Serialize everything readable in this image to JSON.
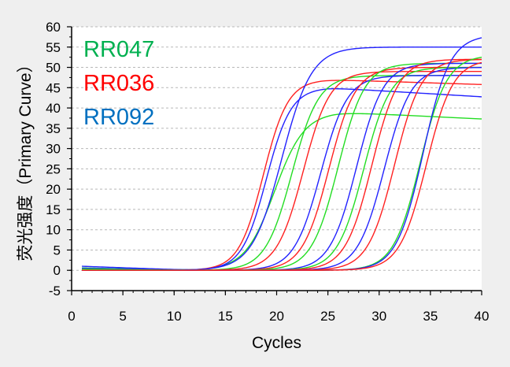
{
  "chart_data": {
    "type": "line",
    "xlabel": "Cycles",
    "ylabel": "荧光强度（Primary Curve）",
    "xlim": [
      0,
      40
    ],
    "ylim": [
      -5,
      60
    ],
    "x_ticks": [
      0,
      5,
      10,
      15,
      20,
      25,
      30,
      35,
      40
    ],
    "y_ticks": [
      -5,
      0,
      5,
      10,
      15,
      20,
      25,
      30,
      35,
      40,
      45,
      50,
      55,
      60
    ],
    "grid": "horizontal-dashed",
    "legend": "top-left",
    "legend_entries": [
      {
        "name": "RR047",
        "color": "#00b050"
      },
      {
        "name": "RR036",
        "color": "#ff0000"
      },
      {
        "name": "RR092",
        "color": "#0070c0"
      }
    ],
    "series": [
      {
        "color": "#22dd22",
        "params": {
          "plateau": 39,
          "midpoint": 19.8,
          "slope": 1.45,
          "decline": 0.12,
          "baseline": 0.6
        }
      },
      {
        "color": "#ff2020",
        "params": {
          "plateau": 47,
          "midpoint": 18.7,
          "slope": 1.2,
          "decline": 0.08,
          "baseline": 0.4
        }
      },
      {
        "color": "#2222ff",
        "params": {
          "plateau": 45,
          "midpoint": 19.0,
          "slope": 1.2,
          "decline": 0.15,
          "baseline": 1.0
        }
      },
      {
        "color": "#2222ff",
        "params": {
          "plateau": 55,
          "midpoint": 20.5,
          "slope": 1.45,
          "decline": 0.0,
          "baseline": 0.5
        }
      },
      {
        "color": "#22dd22",
        "params": {
          "plateau": 48,
          "midpoint": 21.5,
          "slope": 1.3,
          "decline": 0.0,
          "baseline": 0.3
        }
      },
      {
        "color": "#ff2020",
        "params": {
          "plateau": 49,
          "midpoint": 22.6,
          "slope": 1.3,
          "decline": 0.0,
          "baseline": 0.0
        }
      },
      {
        "color": "#2222ff",
        "params": {
          "plateau": 48,
          "midpoint": 24.3,
          "slope": 1.3,
          "decline": 0.0,
          "baseline": 0.0
        }
      },
      {
        "color": "#ff2020",
        "params": {
          "plateau": 50,
          "midpoint": 25.1,
          "slope": 1.3,
          "decline": 0.0,
          "baseline": 0.0
        }
      },
      {
        "color": "#22dd22",
        "params": {
          "plateau": 51,
          "midpoint": 26.0,
          "slope": 1.3,
          "decline": 0.0,
          "baseline": 0.0
        }
      },
      {
        "color": "#2222ff",
        "params": {
          "plateau": 51,
          "midpoint": 27.8,
          "slope": 1.3,
          "decline": 0.0,
          "baseline": 0.0
        }
      },
      {
        "color": "#22dd22",
        "params": {
          "plateau": 50,
          "midpoint": 28.5,
          "slope": 1.3,
          "decline": 0.0,
          "baseline": 0.0
        }
      },
      {
        "color": "#ff2020",
        "params": {
          "plateau": 52,
          "midpoint": 29.3,
          "slope": 1.3,
          "decline": 0.0,
          "baseline": 0.0
        }
      },
      {
        "color": "#2222ff",
        "params": {
          "plateau": 50,
          "midpoint": 30.5,
          "slope": 1.3,
          "decline": 0.0,
          "baseline": 0.0
        }
      },
      {
        "color": "#ff2020",
        "params": {
          "plateau": 52,
          "midpoint": 31.5,
          "slope": 1.3,
          "decline": 0.0,
          "baseline": 0.0
        }
      },
      {
        "color": "#22dd22",
        "params": {
          "plateau": 53,
          "midpoint": 34.0,
          "slope": 1.3,
          "decline": 0.0,
          "baseline": 0.0
        }
      },
      {
        "color": "#2222ff",
        "params": {
          "plateau": 58,
          "midpoint": 34.3,
          "slope": 1.3,
          "decline": 0.0,
          "baseline": 0.0
        }
      },
      {
        "color": "#ff2020",
        "params": {
          "plateau": 52,
          "midpoint": 34.6,
          "slope": 1.3,
          "decline": 0.0,
          "baseline": 0.0
        }
      }
    ]
  }
}
